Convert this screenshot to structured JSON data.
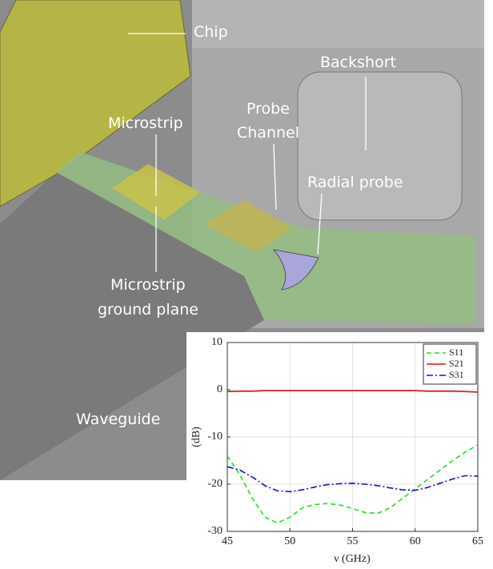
{
  "labels": [
    "Chip",
    "Backshort",
    "Probe",
    "Channel",
    "Microstrip",
    "Radial probe",
    "Microstrip",
    "ground plane",
    "Waveguide"
  ],
  "chart_data": {
    "type": "line",
    "xlabel": "ν (GHz)",
    "ylabel": "(dB)",
    "x": [
      45,
      46,
      47,
      48,
      49,
      50,
      51,
      52,
      53,
      54,
      55,
      56,
      57,
      58,
      59,
      60,
      61,
      62,
      63,
      64,
      65
    ],
    "xlim": [
      45,
      65
    ],
    "xticks": [
      45,
      50,
      55,
      60,
      65
    ],
    "ylim": [
      -30,
      10
    ],
    "yticks": [
      -30,
      -20,
      -10,
      0,
      10
    ],
    "grid": true,
    "legend": "upper-right",
    "series": [
      {
        "name": "S11",
        "color": "#22dd22",
        "linestyle": "dashed",
        "values": [
          -14,
          -18,
          -23,
          -27,
          -28.2,
          -27,
          -25,
          -24.3,
          -24.1,
          -24.4,
          -25.2,
          -26,
          -26.2,
          -25,
          -23,
          -21,
          -19,
          -17,
          -15,
          -13.2,
          -11.7
        ]
      },
      {
        "name": "S21",
        "color": "#dd1111",
        "linestyle": "solid",
        "values": [
          -0.4,
          -0.3,
          -0.3,
          -0.2,
          -0.2,
          -0.2,
          -0.2,
          -0.2,
          -0.2,
          -0.2,
          -0.2,
          -0.2,
          -0.2,
          -0.2,
          -0.2,
          -0.2,
          -0.3,
          -0.3,
          -0.3,
          -0.4,
          -0.5
        ]
      },
      {
        "name": "S31",
        "color": "#1111cc",
        "linestyle": "dashdot",
        "values": [
          -16.3,
          -17,
          -18.5,
          -20.3,
          -21.4,
          -21.6,
          -21.2,
          -20.6,
          -20.1,
          -19.9,
          -19.8,
          -20,
          -20.3,
          -20.8,
          -21.2,
          -21.3,
          -20.7,
          -19.8,
          -18.9,
          -18.2,
          -18.3
        ]
      }
    ]
  }
}
